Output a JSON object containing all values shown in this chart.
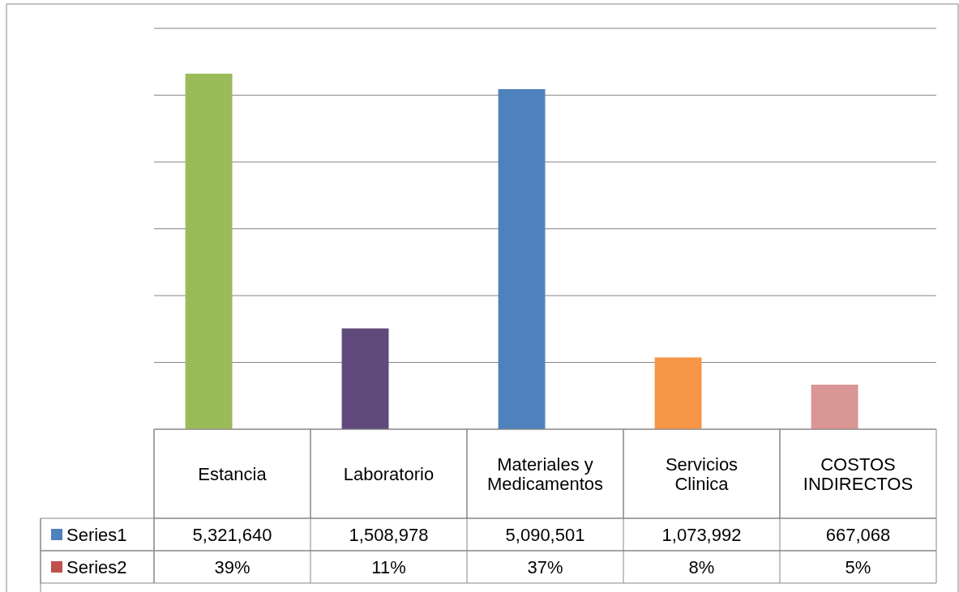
{
  "chart_data": {
    "type": "bar",
    "categories": [
      "Estancia",
      "Laboratorio",
      "Materiales y Medicamentos",
      "Servicios Clinica",
      "COSTOS INDIRECTOS"
    ],
    "series": [
      {
        "name": "Series1",
        "color": "#4f81bd",
        "colors": [
          "#9bbb59",
          "#604a7b",
          "#4f81bd",
          "#f79646",
          "#d99694"
        ],
        "values": [
          5321640,
          1508978,
          5090501,
          1073992,
          667068
        ],
        "value_labels": [
          "5,321,640",
          "1,508,978",
          "5,090,501",
          "1,073,992",
          "667,068"
        ]
      },
      {
        "name": "Series2",
        "color": "#c0504d",
        "values": [
          39,
          11,
          37,
          8,
          5
        ],
        "value_labels": [
          "39%",
          "11%",
          "37%",
          "8%",
          "5%"
        ]
      }
    ],
    "ylim": [
      0,
      6000000
    ],
    "yticks": [
      {
        "value": 0,
        "label": null
      },
      {
        "value": 1000000,
        "label": null
      },
      {
        "value": 2000000,
        "label": null
      },
      {
        "value": 3000000,
        "label": null
      },
      {
        "value": 4000000,
        "label": null
      },
      {
        "value": 5000000,
        "label": null
      },
      {
        "value": 6000000,
        "label": null
      }
    ],
    "grid": "y",
    "tick_labels": "x",
    "legend": "bottom left"
  }
}
